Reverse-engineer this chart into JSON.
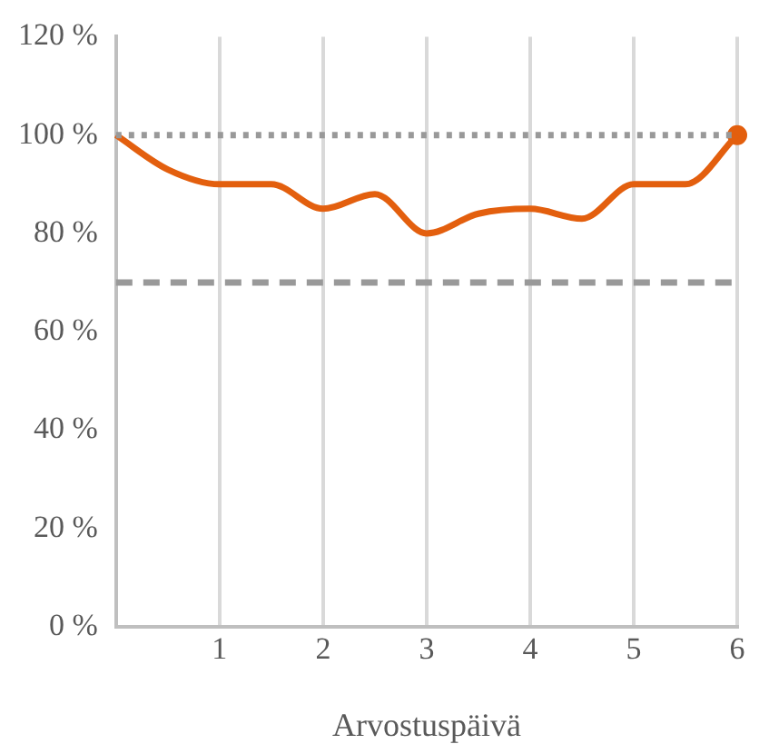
{
  "chart_data": {
    "type": "line",
    "xlabel": "Arvostuspäivä",
    "series": [
      {
        "color": "#e35f0e",
        "x": [
          0,
          0.5,
          1,
          1.5,
          2,
          2.5,
          3,
          3.5,
          4,
          4.5,
          5,
          5.5,
          6
        ],
        "values": [
          100,
          93,
          90,
          90,
          85,
          88,
          80,
          84,
          85,
          83,
          90,
          90,
          100
        ]
      },
      {
        "type": "scatter",
        "color": "#e35f0e",
        "marker": "circle",
        "x": [
          6
        ],
        "values": [
          100
        ]
      }
    ],
    "xlim": [
      0,
      6
    ],
    "xticks": [
      {
        "value": 0,
        "label": null
      },
      1,
      2,
      3,
      4,
      5,
      6
    ],
    "ylim": [
      0,
      120
    ],
    "yticks": [
      {
        "value": 0,
        "label": "0 %"
      },
      {
        "value": 20,
        "label": "20 %"
      },
      {
        "value": 40,
        "label": "40 %"
      },
      {
        "value": 60,
        "label": "60 %"
      },
      {
        "value": 80,
        "label": "80 %"
      },
      {
        "value": 100,
        "label": "100 %"
      },
      {
        "value": 120,
        "label": "120 %"
      }
    ],
    "ref_lines": [
      {
        "axis": "y",
        "value": 100,
        "color": "#999999",
        "line_style": "dotted"
      },
      {
        "axis": "y",
        "value": 70,
        "color": "#999999",
        "line_style": "dashed"
      }
    ],
    "grid": "x",
    "legend": false,
    "line_style": "solid"
  }
}
